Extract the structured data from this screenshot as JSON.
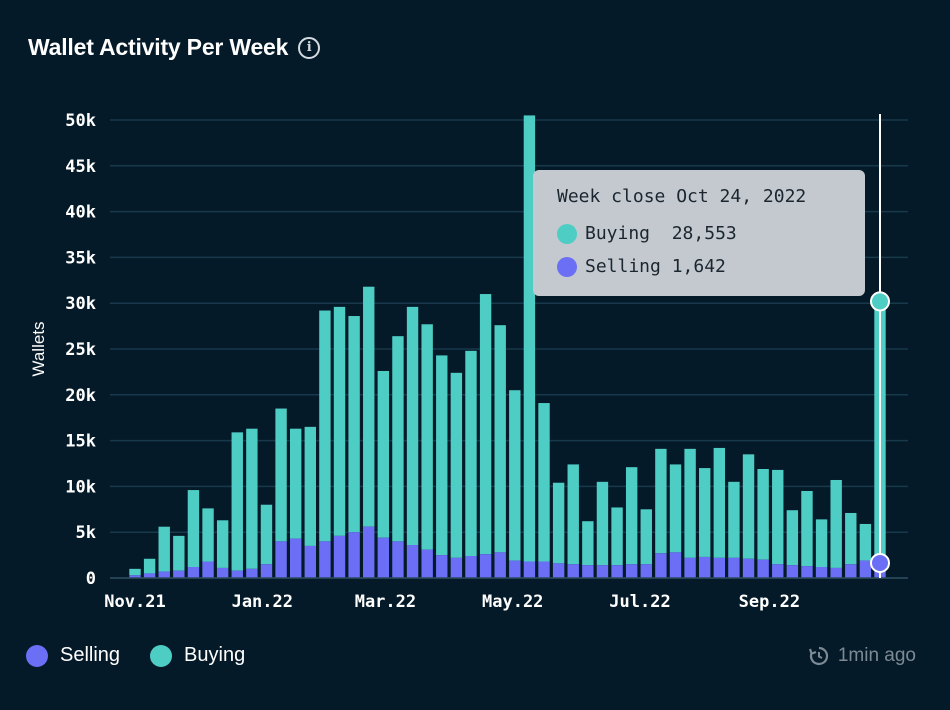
{
  "header": {
    "title": "Wallet Activity Per Week",
    "info_icon": "info-icon"
  },
  "colors": {
    "background": "#051a28",
    "buying": "#4ecdc4",
    "selling": "#6b6ff5",
    "grid": "#18384b",
    "tooltip_bg": "#c3c9cf"
  },
  "chart_data": {
    "type": "bar",
    "stacked": true,
    "ylabel": "Wallets",
    "ylim": [
      0,
      50000
    ],
    "yticks": [
      0,
      5000,
      10000,
      15000,
      20000,
      25000,
      30000,
      35000,
      40000,
      45000,
      50000
    ],
    "ytick_labels": [
      "0",
      "5k",
      "10k",
      "15k",
      "20k",
      "25k",
      "30k",
      "35k",
      "40k",
      "45k",
      "50k"
    ],
    "x_start": "2021-11-01",
    "x_end": "2022-10-24",
    "xtick_labels": [
      {
        "date": "2021-11-01",
        "label": "Nov.21"
      },
      {
        "date": "2022-01-01",
        "label": "Jan.22"
      },
      {
        "date": "2022-03-01",
        "label": "Mar.22"
      },
      {
        "date": "2022-05-01",
        "label": "May.22"
      },
      {
        "date": "2022-07-01",
        "label": "Jul.22"
      },
      {
        "date": "2022-09-01",
        "label": "Sep.22"
      }
    ],
    "grid": true,
    "series": [
      {
        "name": "Selling",
        "color": "#6b6ff5",
        "values": [
          300,
          500,
          700,
          800,
          1200,
          1800,
          1100,
          800,
          1000,
          1500,
          4000,
          4300,
          3500,
          4000,
          4600,
          5000,
          5600,
          4400,
          4000,
          3600,
          3100,
          2500,
          2200,
          2400,
          2600,
          2800,
          1900,
          1800,
          1800,
          1600,
          1500,
          1400,
          1400,
          1400,
          1500,
          1500,
          2700,
          2800,
          2200,
          2300,
          2200,
          2200,
          2100,
          2000,
          1500,
          1400,
          1300,
          1200,
          1100,
          1500,
          1900,
          1642
        ]
      },
      {
        "name": "Buying",
        "color": "#4ecdc4",
        "values": [
          700,
          1600,
          4900,
          3800,
          8400,
          5800,
          5200,
          15100,
          15300,
          6500,
          14500,
          12000,
          13000,
          25200,
          25000,
          23600,
          26200,
          18200,
          22400,
          26000,
          24600,
          21800,
          20200,
          22400,
          28400,
          24800,
          18600,
          48700,
          17300,
          8800,
          10900,
          4800,
          9100,
          6300,
          10600,
          6000,
          11400,
          9600,
          11900,
          9700,
          12000,
          8300,
          11400,
          9900,
          10300,
          6000,
          8200,
          5200,
          9600,
          5600,
          4000,
          28553
        ]
      }
    ]
  },
  "tooltip": {
    "title": "Week close Oct 24, 2022",
    "buying_label": "Buying",
    "buying_value": "28,553",
    "selling_label": "Selling",
    "selling_value": "1,642"
  },
  "legend": {
    "selling": "Selling",
    "buying": "Buying"
  },
  "footer": {
    "updated": "1min ago",
    "refresh_icon": "refresh-clock-icon"
  }
}
